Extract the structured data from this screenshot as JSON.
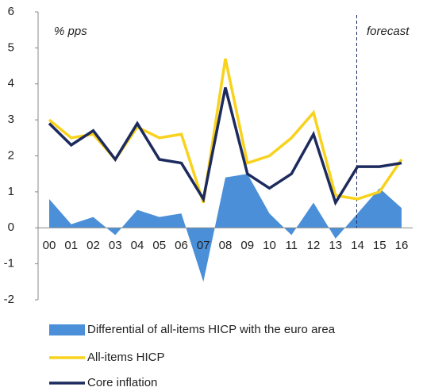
{
  "chart_data": {
    "type": "line",
    "annotations": [
      "% pps",
      "forecast"
    ],
    "categories": [
      "00",
      "01",
      "02",
      "03",
      "04",
      "05",
      "06",
      "07",
      "08",
      "09",
      "10",
      "11",
      "12",
      "13",
      "14",
      "15",
      "16"
    ],
    "series": [
      {
        "name": "Differential of all-items HICP with the euro area",
        "type": "area",
        "color": "#4a8fd8",
        "values": [
          0.8,
          0.1,
          0.3,
          -0.2,
          0.5,
          0.3,
          0.4,
          -1.5,
          1.4,
          1.5,
          0.4,
          -0.2,
          0.7,
          -0.3,
          0.4,
          1.1,
          0.55
        ]
      },
      {
        "name": "All-items HICP",
        "type": "line",
        "color": "#f8d21c",
        "values": [
          3.0,
          2.5,
          2.6,
          1.9,
          2.8,
          2.5,
          2.6,
          0.7,
          4.7,
          1.8,
          2.0,
          2.5,
          3.2,
          0.9,
          0.8,
          1.0,
          1.9
        ]
      },
      {
        "name": "Core inflation",
        "type": "line",
        "color": "#1c2a5e",
        "values": [
          2.9,
          2.3,
          2.7,
          1.9,
          2.9,
          1.9,
          1.8,
          0.8,
          3.9,
          1.5,
          1.1,
          1.5,
          2.6,
          0.7,
          1.7,
          1.7,
          1.8
        ]
      }
    ],
    "ylim": [
      -2,
      6
    ],
    "yticks": [
      -2,
      -1,
      0,
      1,
      2,
      3,
      4,
      5,
      6
    ]
  }
}
